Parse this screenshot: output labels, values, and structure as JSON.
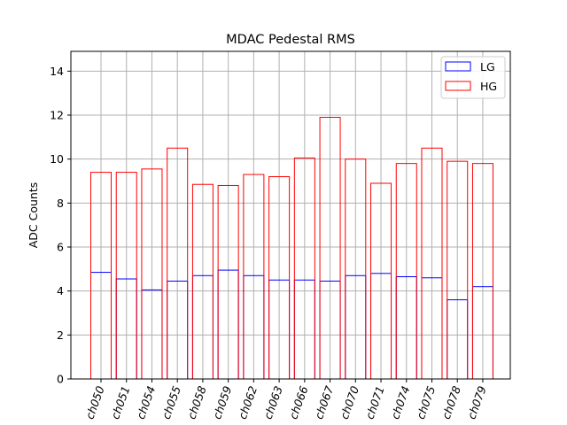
{
  "chart_data": {
    "type": "bar",
    "title": "MDAC Pedestal RMS",
    "xlabel": "",
    "ylabel": "ADC Counts",
    "ylim": [
      0,
      14.9
    ],
    "yticks": [
      0,
      2,
      4,
      6,
      8,
      10,
      12,
      14
    ],
    "grid": true,
    "legend_position": "top-right",
    "categories": [
      "ch050",
      "ch051",
      "ch054",
      "ch055",
      "ch058",
      "ch059",
      "ch062",
      "ch063",
      "ch066",
      "ch067",
      "ch070",
      "ch071",
      "ch074",
      "ch075",
      "ch078",
      "ch079"
    ],
    "series": [
      {
        "name": "LG",
        "color": "#0000ff",
        "values": [
          4.85,
          4.55,
          4.05,
          4.45,
          4.7,
          4.95,
          4.7,
          4.5,
          4.5,
          4.45,
          4.7,
          4.8,
          4.65,
          4.6,
          3.6,
          4.2
        ]
      },
      {
        "name": "HG",
        "color": "#ff0000",
        "values": [
          9.4,
          9.4,
          9.55,
          10.5,
          8.85,
          8.8,
          9.3,
          9.2,
          10.05,
          11.9,
          10.0,
          8.9,
          9.8,
          10.5,
          9.9,
          9.8
        ]
      }
    ]
  }
}
